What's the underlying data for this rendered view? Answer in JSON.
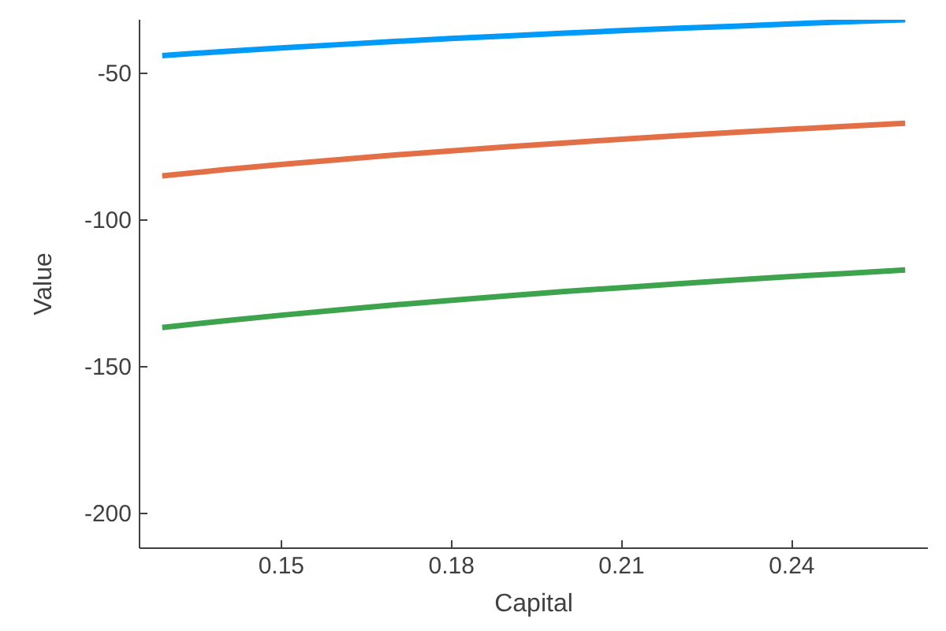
{
  "chart_data": {
    "type": "line",
    "xlabel": "Capital",
    "ylabel": "Value",
    "xlim": [
      0.125,
      0.264
    ],
    "ylim": [
      -212,
      -31.9
    ],
    "xticks": [
      0.15,
      0.18,
      0.21,
      0.24
    ],
    "yticks": [
      -50,
      -100,
      -150,
      -200
    ],
    "grid": false,
    "line_style": "solid",
    "x": [
      0.129,
      0.14,
      0.15,
      0.16,
      0.17,
      0.18,
      0.19,
      0.2,
      0.21,
      0.22,
      0.23,
      0.24,
      0.25,
      0.26
    ],
    "series": [
      {
        "color": "#009af9",
        "values": [
          -44.1,
          -42.7,
          -41.5,
          -40.4,
          -39.3,
          -38.3,
          -37.4,
          -36.5,
          -35.6,
          -34.8,
          -34.1,
          -33.3,
          -32.6,
          -31.9
        ]
      },
      {
        "color": "#e26f46",
        "values": [
          -85.1,
          -83.0,
          -81.2,
          -79.6,
          -78.0,
          -76.6,
          -75.2,
          -73.9,
          -72.6,
          -71.4,
          -70.3,
          -69.2,
          -68.2,
          -67.2
        ]
      },
      {
        "color": "#3da44d",
        "values": [
          -136.8,
          -134.5,
          -132.6,
          -130.8,
          -129.1,
          -127.5,
          -126.0,
          -124.5,
          -123.2,
          -121.9,
          -120.6,
          -119.4,
          -118.3,
          -117.2
        ]
      }
    ]
  }
}
